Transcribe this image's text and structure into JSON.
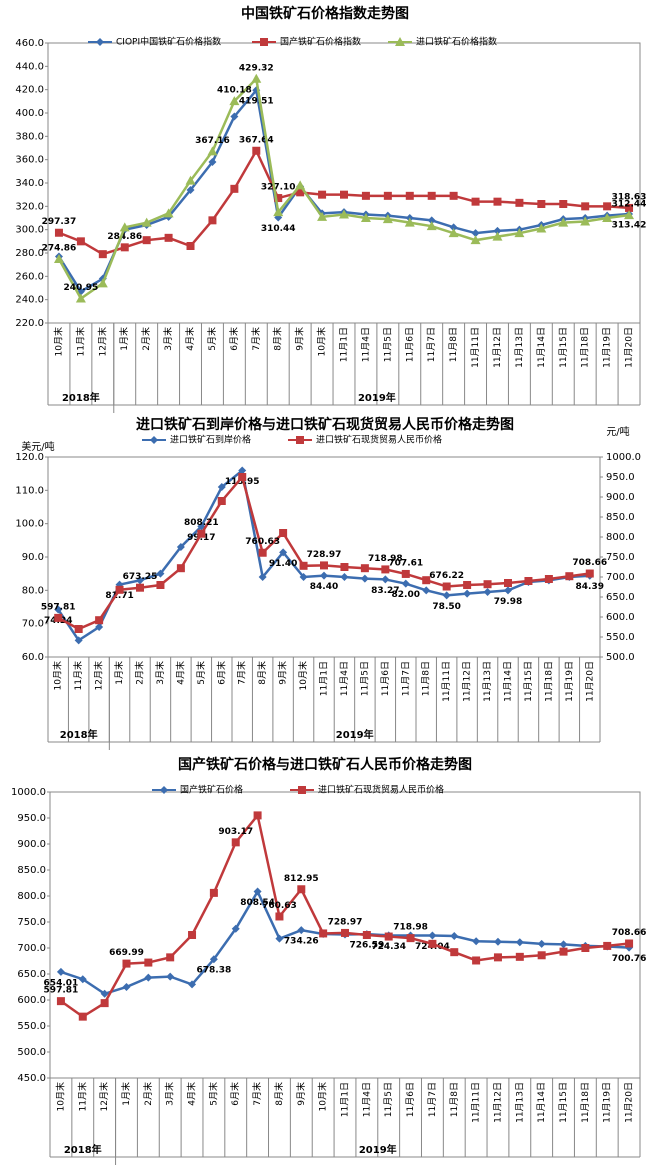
{
  "chart_data": [
    {
      "type": "line",
      "title": "中国铁矿石价格指数走势图",
      "categories": [
        "10月末",
        "11月末",
        "12月末",
        "1月末",
        "2月末",
        "3月末",
        "4月末",
        "5月末",
        "6月末",
        "7月末",
        "8月末",
        "9月末",
        "10月末",
        "11月1日",
        "11月4日",
        "11月5日",
        "11月6日",
        "11月7日",
        "11月8日",
        "11月11日",
        "11月12日",
        "11月13日",
        "11月14日",
        "11月15日",
        "11月18日",
        "11月19日",
        "11月20日"
      ],
      "x_groups": [
        "2018年",
        "2019年"
      ],
      "ylim": [
        220,
        460
      ],
      "yticks": [
        {
          "value": 220,
          "label": "220.0"
        },
        {
          "value": 240,
          "label": "240.0"
        },
        {
          "value": 260,
          "label": "260.0"
        },
        {
          "value": 280,
          "label": "280.0"
        },
        {
          "value": 300,
          "label": "300.0"
        },
        {
          "value": 320,
          "label": "320.0"
        },
        {
          "value": 340,
          "label": "340.0"
        },
        {
          "value": 360,
          "label": "360.0"
        },
        {
          "value": 380,
          "label": "380.0"
        },
        {
          "value": 400,
          "label": "400.0"
        },
        {
          "value": 420,
          "label": "420.0"
        },
        {
          "value": 440,
          "label": "440.0"
        },
        {
          "value": 460,
          "label": "460.0"
        }
      ],
      "grid": false,
      "series": [
        {
          "name": "CIOPI中国铁矿石价格指数",
          "color": "#3c6db0",
          "marker": "diamond",
          "values": [
            277,
            247,
            258,
            300,
            304,
            311,
            334,
            358,
            397,
            419.51,
            310.44,
            337,
            314,
            315,
            313,
            312,
            310,
            308,
            302,
            297,
            299,
            300,
            304,
            309,
            310,
            312,
            313.42
          ],
          "value_labels": [
            null,
            null,
            null,
            null,
            null,
            null,
            null,
            null,
            null,
            "419.51",
            "310.44",
            null,
            null,
            null,
            null,
            null,
            null,
            null,
            null,
            null,
            null,
            null,
            null,
            null,
            null,
            null,
            "313.42"
          ]
        },
        {
          "name": "国产铁矿石价格指数",
          "color": "#c0393b",
          "marker": "square",
          "values": [
            297.37,
            290,
            279,
            284.86,
            291,
            293,
            286,
            308,
            335,
            367.64,
            327.1,
            332,
            330,
            330,
            329,
            329,
            329,
            329,
            329,
            324,
            324,
            323,
            322,
            322,
            320,
            320,
            318.63
          ],
          "value_labels": [
            "297.37",
            null,
            null,
            "284.86",
            null,
            null,
            null,
            null,
            null,
            "367.64",
            "327.10",
            null,
            null,
            null,
            null,
            null,
            null,
            null,
            null,
            null,
            null,
            null,
            null,
            null,
            null,
            null,
            "318.63"
          ]
        },
        {
          "name": "进口铁矿石价格指数",
          "color": "#9bbb59",
          "marker": "triangle",
          "values": [
            274.86,
            240.95,
            254,
            302,
            306,
            314,
            342,
            367.16,
            410.18,
            429.32,
            315,
            338,
            311,
            313,
            310,
            309,
            306,
            303,
            297,
            291,
            294,
            297,
            301,
            306,
            307,
            310,
            312.44
          ],
          "value_labels": [
            "274.86",
            "240.95",
            null,
            null,
            null,
            null,
            null,
            "367.16",
            "410.18",
            "429.32",
            null,
            null,
            null,
            null,
            null,
            null,
            null,
            null,
            null,
            null,
            null,
            null,
            null,
            null,
            null,
            null,
            "312.44"
          ]
        }
      ]
    },
    {
      "type": "line",
      "title": "进口铁矿石到岸价格与进口铁矿石现货贸易人民币价格走势图",
      "categories": [
        "10月末",
        "11月末",
        "12月末",
        "1月末",
        "2月末",
        "3月末",
        "4月末",
        "5月末",
        "6月末",
        "7月末",
        "8月末",
        "9月末",
        "10月末",
        "11月1日",
        "11月4日",
        "11月5日",
        "11月6日",
        "11月7日",
        "11月8日",
        "11月11日",
        "11月12日",
        "11月13日",
        "11月14日",
        "11月15日",
        "11月18日",
        "11月19日",
        "11月20日"
      ],
      "x_groups": [
        "2018年",
        "2019年"
      ],
      "y_label": "美元/吨",
      "y2_label": "元/吨",
      "ylim": [
        60,
        120
      ],
      "yticks": [
        {
          "value": 60,
          "label": "60.0"
        },
        {
          "value": 70,
          "label": "70.0"
        },
        {
          "value": 80,
          "label": "80.0"
        },
        {
          "value": 90,
          "label": "90.0"
        },
        {
          "value": 100,
          "label": "100.0"
        },
        {
          "value": 110,
          "label": "110.0"
        },
        {
          "value": 120,
          "label": "120.0"
        }
      ],
      "y2lim": [
        500,
        1000
      ],
      "y2ticks": [
        {
          "value": 500,
          "label": "500.0"
        },
        {
          "value": 550,
          "label": "550.0"
        },
        {
          "value": 600,
          "label": "600.0"
        },
        {
          "value": 650,
          "label": "650.0"
        },
        {
          "value": 700,
          "label": "700.0"
        },
        {
          "value": 750,
          "label": "750.0"
        },
        {
          "value": 800,
          "label": "800.0"
        },
        {
          "value": 850,
          "label": "850.0"
        },
        {
          "value": 900,
          "label": "900.0"
        },
        {
          "value": 950,
          "label": "950.0"
        },
        {
          "value": 1000,
          "label": "1000.0"
        }
      ],
      "grid": false,
      "series": [
        {
          "name": "进口铁矿石到岸价格",
          "color": "#3c6db0",
          "marker": "diamond",
          "values": [
            74.24,
            65,
            69,
            81.71,
            83,
            85,
            93,
            99.17,
            111,
            115.95,
            84,
            91.4,
            84,
            84.4,
            84,
            83.5,
            83.27,
            82,
            80,
            78.5,
            79,
            79.5,
            79.98,
            82.5,
            83,
            84,
            84.39
          ],
          "value_labels": [
            "74.24",
            null,
            null,
            "81.71",
            null,
            null,
            null,
            "99.17",
            null,
            "115.95",
            null,
            "91.40",
            null,
            "84.40",
            null,
            null,
            "83.27",
            "82.00",
            null,
            "78.50",
            null,
            null,
            "79.98",
            null,
            null,
            null,
            "84.39"
          ]
        },
        {
          "name": "进口铁矿石现货贸易人民币价格",
          "color": "#c0393b",
          "marker": "square",
          "axis": "y2",
          "values": [
            597.81,
            570,
            592,
            668,
            673.25,
            680,
            722,
            808.21,
            890,
            950,
            760.63,
            810,
            728,
            728.97,
            725,
            722,
            718.98,
            707.61,
            692,
            676.22,
            680,
            682,
            685,
            690,
            695,
            702,
            708.66
          ],
          "value_labels": [
            "597.81",
            null,
            null,
            null,
            "673.25",
            null,
            null,
            "808.21",
            null,
            null,
            "760.63",
            null,
            null,
            "728.97",
            null,
            null,
            "718.98",
            "707.61",
            null,
            "676.22",
            null,
            null,
            null,
            null,
            null,
            null,
            "708.66"
          ]
        }
      ]
    },
    {
      "type": "line",
      "title": "国产铁矿石价格与进口铁矿石人民币价格走势图",
      "categories": [
        "10月末",
        "11月末",
        "12月末",
        "1月末",
        "2月末",
        "3月末",
        "4月末",
        "5月末",
        "6月末",
        "7月末",
        "8月末",
        "9月末",
        "10月末",
        "11月1日",
        "11月4日",
        "11月5日",
        "11月6日",
        "11月7日",
        "11月8日",
        "11月11日",
        "11月12日",
        "11月13日",
        "11月14日",
        "11月15日",
        "11月18日",
        "11月19日",
        "11月20日"
      ],
      "x_groups": [
        "2018年",
        "2019年"
      ],
      "ylim": [
        450,
        1000
      ],
      "yticks": [
        {
          "value": 450,
          "label": "450.0"
        },
        {
          "value": 500,
          "label": "500.0"
        },
        {
          "value": 550,
          "label": "550.0"
        },
        {
          "value": 600,
          "label": "600.0"
        },
        {
          "value": 650,
          "label": "650.0"
        },
        {
          "value": 700,
          "label": "700.0"
        },
        {
          "value": 750,
          "label": "750.0"
        },
        {
          "value": 800,
          "label": "800.0"
        },
        {
          "value": 850,
          "label": "850.0"
        },
        {
          "value": 900,
          "label": "900.0"
        },
        {
          "value": 950,
          "label": "950.0"
        },
        {
          "value": 1000,
          "label": "1000.0"
        }
      ],
      "grid": false,
      "series": [
        {
          "name": "国产铁矿石价格",
          "color": "#3c6db0",
          "marker": "diamond",
          "values": [
            654.01,
            640,
            612,
            625,
            643,
            645,
            630,
            678.38,
            737,
            808.54,
            718,
            734.26,
            727,
            726,
            726.59,
            724.34,
            724,
            724.04,
            723,
            713,
            712,
            711,
            708,
            707,
            704,
            703,
            700.76
          ],
          "value_labels": [
            "654.01",
            null,
            null,
            null,
            null,
            null,
            null,
            "678.38",
            null,
            "808.54",
            null,
            "734.26",
            null,
            null,
            "726.59",
            "724.34",
            null,
            "724.04",
            null,
            null,
            null,
            null,
            null,
            null,
            null,
            null,
            "700.76"
          ]
        },
        {
          "name": "进口铁矿石现货贸易人民币价格",
          "color": "#c0393b",
          "marker": "square",
          "values": [
            597.81,
            568,
            594,
            669.99,
            672,
            682,
            725,
            806,
            903.17,
            955,
            760.63,
            812.95,
            728,
            728.97,
            725,
            722,
            718.98,
            708,
            692,
            676,
            682,
            683,
            686,
            693,
            700,
            704,
            708.66
          ],
          "value_labels": [
            "597.81",
            null,
            null,
            "669.99",
            null,
            null,
            null,
            null,
            "903.17",
            null,
            "760.63",
            "812.95",
            null,
            "728.97",
            null,
            null,
            "718.98",
            null,
            null,
            null,
            null,
            null,
            null,
            null,
            null,
            null,
            "708.66"
          ]
        }
      ]
    }
  ]
}
